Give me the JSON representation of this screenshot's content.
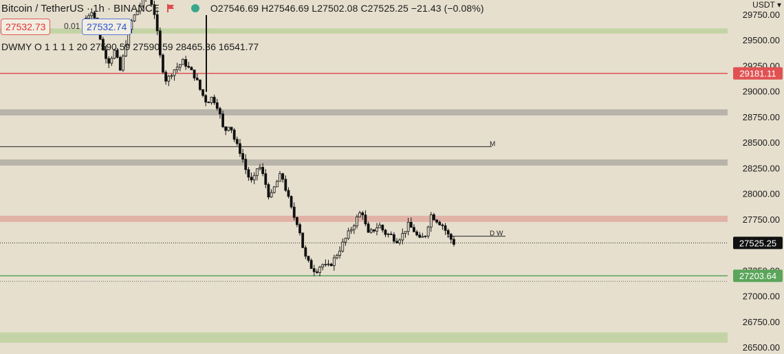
{
  "header": {
    "symbol": "Bitcoin / TetherUS · 1h · BINANCE",
    "ohlc": "O27546.69 H27546.69 L27502.08 C27525.25 −21.43 (−0.08%)"
  },
  "prices": {
    "bid": "27532.73",
    "spread": "0.01",
    "ask": "27532.74"
  },
  "indicator": {
    "text": "DWMY O 1 1 1 1 20   27590.59  27590.59  28465.36  16541.77"
  },
  "axis": {
    "currency": "USDT",
    "ticks": [
      "29750.00",
      "29500.00",
      "29250.00",
      "29000.00",
      "28750.00",
      "28500.00",
      "28250.00",
      "28000.00",
      "27750.00",
      "27525.25",
      "27250.00",
      "27000.00",
      "26750.00",
      "26500.00"
    ],
    "tick_values": [
      29750,
      29500,
      29250,
      29000,
      28750,
      28500,
      28250,
      28000,
      27750,
      27500,
      27250,
      27000,
      26750,
      26500
    ]
  },
  "levels": {
    "red_line": {
      "value": 29181.11,
      "label": "29181.11",
      "color": "#e05252"
    },
    "current": {
      "value": 27525.25,
      "label": "27525.25",
      "color": "#111111"
    },
    "green_line": {
      "value": 27203.64,
      "label": "27203.64",
      "color": "#5aa55a"
    },
    "m_line": {
      "value": 28465.36,
      "label": "M"
    },
    "dw_line": {
      "value": 27590.59,
      "label": "D W"
    }
  },
  "zones": [
    {
      "from": 29570,
      "to": 29620,
      "color": "#c3d3a5"
    },
    {
      "from": 28770,
      "to": 28830,
      "color": "#b9b4aa"
    },
    {
      "from": 28280,
      "to": 28340,
      "color": "#b9b4aa"
    },
    {
      "from": 27730,
      "to": 27790,
      "color": "#e1b2a6"
    },
    {
      "from": 26550,
      "to": 26650,
      "color": "#c3d3a5"
    }
  ],
  "candles_path": [
    29720,
    29800,
    29650,
    29400,
    29300,
    29400,
    29200,
    29500,
    29700,
    29800,
    29900,
    29950,
    29750,
    29300,
    29100,
    29200,
    29250,
    29300,
    29220,
    29150,
    29000,
    28900,
    28950,
    28850,
    28600,
    28700,
    28500,
    28400,
    28200,
    28100,
    28300,
    28150,
    27950,
    28100,
    28200,
    28000,
    27800,
    27700,
    27400,
    27300,
    27250,
    27320,
    27280,
    27350,
    27450,
    27550,
    27650,
    27750,
    27850,
    27600,
    27650,
    27700,
    27620,
    27600,
    27550,
    27600,
    27700,
    27650,
    27550,
    27600,
    27800,
    27750,
    27700,
    27600,
    27525
  ]
}
